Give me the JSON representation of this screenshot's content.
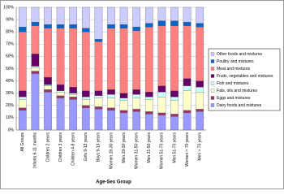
{
  "chart_data": {
    "type": "stacked_bar_percent",
    "x_label": "Age-Sex Group",
    "categories": [
      "All Groups",
      "Infants 6-11 months",
      "Children 2 years",
      "Children 3 years",
      "Children 4-8 years",
      "Girls 9-13 years",
      "Boys 9-13 years",
      "Women 19-30 years",
      "Men 19-30 years",
      "Women 31-50 years",
      "Men 31-50 years",
      "Women 51-70 years",
      "Men 51-70 years",
      "Women > 70 years",
      "Men > 70 years"
    ],
    "series": [
      {
        "name": "Dairy foods and mixtures",
        "color": "#9999ff",
        "values": [
          16,
          46,
          31,
          26,
          25,
          18,
          17,
          16,
          14,
          15,
          13,
          12,
          11,
          14,
          15
        ]
      },
      {
        "name": "Eggs and mixtures",
        "color": "#993366",
        "values": [
          2,
          2,
          2,
          2,
          2,
          2,
          2,
          2,
          2,
          2,
          2,
          2,
          2,
          2,
          2
        ]
      },
      {
        "name": "Fats, oils and mixtures",
        "color": "#ffffcc",
        "values": [
          7,
          3,
          3,
          3,
          2,
          5,
          7,
          8,
          8,
          9,
          10,
          13,
          11,
          16,
          14
        ]
      },
      {
        "name": "Fish and mixtures",
        "color": "#ccffff",
        "values": [
          2,
          1,
          1,
          1,
          1,
          2,
          2,
          3,
          2,
          3,
          2,
          4,
          3,
          4,
          4
        ]
      },
      {
        "name": "Fruits, vegetables and mixtures",
        "color": "#660066",
        "values": [
          5,
          10,
          6,
          5,
          5,
          5,
          4,
          4,
          4,
          4,
          4,
          5,
          5,
          6,
          5
        ]
      },
      {
        "name": "Meat and mixtures",
        "color": "#ff8080",
        "values": [
          48,
          23,
          40,
          46,
          48,
          48,
          40,
          50,
          53,
          48,
          53,
          49,
          53,
          43,
          44
        ]
      },
      {
        "name": "Poultry and mixtures",
        "color": "#0066cc",
        "values": [
          4,
          3,
          3,
          3,
          3,
          3,
          2,
          3,
          3,
          3,
          3,
          4,
          4,
          3,
          3
        ]
      },
      {
        "name": "Other foods and mixtures",
        "color": "#ccccff",
        "values": [
          16,
          12,
          14,
          14,
          14,
          17,
          26,
          14,
          14,
          16,
          13,
          11,
          11,
          12,
          13
        ]
      }
    ],
    "ylim": [
      0,
      100
    ],
    "yticks": [
      {
        "value": 0,
        "label": "0%"
      },
      {
        "value": 10,
        "label": "10%"
      },
      {
        "value": 20,
        "label": "20%"
      },
      {
        "value": 30,
        "label": "30%"
      },
      {
        "value": 40,
        "label": "40%"
      },
      {
        "value": 50,
        "label": "50%"
      },
      {
        "value": 60,
        "label": "60%"
      },
      {
        "value": 70,
        "label": "70%"
      },
      {
        "value": 80,
        "label": "80%"
      },
      {
        "value": 90,
        "label": "90%"
      },
      {
        "value": 100,
        "label": "100%"
      }
    ],
    "grid": true,
    "legend": "right"
  }
}
